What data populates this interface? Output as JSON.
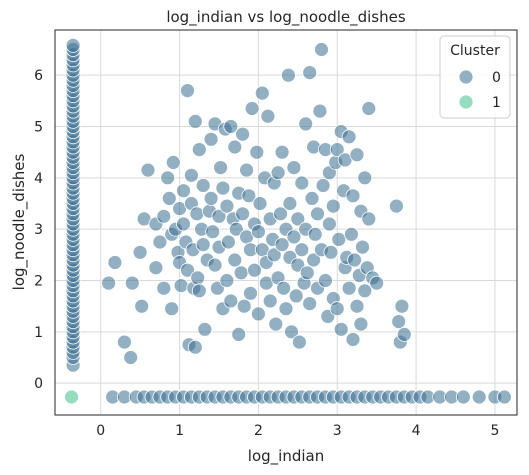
{
  "chart_data": {
    "type": "scatter",
    "title": "log_indian vs log_noodle_dishes",
    "xlabel": "log_indian",
    "ylabel": "log_noodle_dishes",
    "xlim": [
      -0.58,
      5.28
    ],
    "ylim": [
      -0.62,
      6.88
    ],
    "xticks": [
      0,
      1,
      2,
      3,
      4,
      5
    ],
    "yticks": [
      0,
      1,
      2,
      3,
      4,
      5,
      6
    ],
    "grid": true,
    "legend": {
      "title": "Cluster",
      "position": "top-right",
      "entries": [
        "0",
        "1"
      ]
    },
    "colors": {
      "0": "#3b6f92",
      "1": "#3fbf8a"
    },
    "series": [
      {
        "name": "0",
        "x_strip_value": -0.35,
        "strip_y": [
          0.35,
          0.5,
          0.6,
          0.7,
          0.8,
          0.9,
          1.0,
          1.1,
          1.2,
          1.3,
          1.4,
          1.5,
          1.6,
          1.7,
          1.8,
          1.9,
          2.0,
          2.1,
          2.2,
          2.3,
          2.4,
          2.5,
          2.6,
          2.7,
          2.8,
          2.9,
          3.0,
          3.1,
          3.2,
          3.3,
          3.4,
          3.5,
          3.6,
          3.7,
          3.8,
          3.9,
          4.0,
          4.1,
          4.2,
          4.3,
          4.4,
          4.5,
          4.6,
          4.7,
          4.8,
          4.9,
          5.0,
          5.1,
          5.2,
          5.3,
          5.4,
          5.5,
          5.6,
          5.7,
          5.8,
          5.9,
          6.0,
          6.1,
          6.2,
          6.3,
          6.4,
          6.5,
          6.58
        ],
        "y_strip_value": -0.27,
        "strip_x": [
          0.15,
          0.3,
          0.45,
          0.55,
          0.65,
          0.75,
          0.85,
          0.95,
          1.05,
          1.15,
          1.25,
          1.35,
          1.45,
          1.55,
          1.65,
          1.75,
          1.85,
          1.95,
          2.05,
          2.15,
          2.25,
          2.35,
          2.45,
          2.55,
          2.65,
          2.75,
          2.85,
          2.95,
          3.05,
          3.15,
          3.25,
          3.35,
          3.45,
          3.55,
          3.65,
          3.75,
          3.85,
          3.95,
          4.05,
          4.15,
          4.3,
          4.45,
          4.6,
          4.8,
          5.0,
          5.12
        ],
        "points": [
          [
            0.1,
            1.95
          ],
          [
            0.18,
            2.35
          ],
          [
            0.3,
            0.8
          ],
          [
            0.38,
            0.5
          ],
          [
            0.4,
            1.95
          ],
          [
            0.5,
            2.55
          ],
          [
            0.52,
            1.5
          ],
          [
            0.55,
            3.2
          ],
          [
            0.6,
            4.15
          ],
          [
            0.7,
            3.1
          ],
          [
            0.7,
            2.25
          ],
          [
            0.75,
            2.75
          ],
          [
            0.8,
            3.25
          ],
          [
            0.8,
            1.85
          ],
          [
            0.85,
            4.0
          ],
          [
            0.87,
            3.6
          ],
          [
            0.9,
            1.45
          ],
          [
            0.9,
            2.9
          ],
          [
            0.92,
            4.3
          ],
          [
            0.95,
            3.0
          ],
          [
            0.98,
            2.55
          ],
          [
            1.0,
            3.4
          ],
          [
            1.0,
            2.35
          ],
          [
            1.02,
            1.9
          ],
          [
            1.05,
            3.75
          ],
          [
            1.05,
            3.1
          ],
          [
            1.08,
            2.75
          ],
          [
            1.1,
            5.7
          ],
          [
            1.1,
            2.2
          ],
          [
            1.12,
            0.75
          ],
          [
            1.15,
            3.5
          ],
          [
            1.15,
            4.05
          ],
          [
            1.17,
            2.6
          ],
          [
            1.18,
            1.85
          ],
          [
            1.2,
            0.7
          ],
          [
            1.2,
            5.1
          ],
          [
            1.22,
            3.3
          ],
          [
            1.23,
            2.05
          ],
          [
            1.25,
            1.8
          ],
          [
            1.25,
            4.55
          ],
          [
            1.28,
            3.0
          ],
          [
            1.3,
            2.7
          ],
          [
            1.3,
            3.85
          ],
          [
            1.32,
            1.05
          ],
          [
            1.35,
            2.4
          ],
          [
            1.38,
            3.35
          ],
          [
            1.4,
            4.75
          ],
          [
            1.4,
            3.6
          ],
          [
            1.42,
            2.95
          ],
          [
            1.45,
            5.05
          ],
          [
            1.45,
            2.3
          ],
          [
            1.48,
            1.85
          ],
          [
            1.5,
            3.25
          ],
          [
            1.5,
            2.65
          ],
          [
            1.52,
            4.2
          ],
          [
            1.55,
            3.8
          ],
          [
            1.55,
            1.45
          ],
          [
            1.58,
            4.95
          ],
          [
            1.6,
            3.45
          ],
          [
            1.6,
            2.0
          ],
          [
            1.62,
            2.75
          ],
          [
            1.65,
            5.0
          ],
          [
            1.65,
            1.6
          ],
          [
            1.68,
            3.2
          ],
          [
            1.7,
            2.4
          ],
          [
            1.7,
            4.6
          ],
          [
            1.72,
            3.0
          ],
          [
            1.75,
            3.7
          ],
          [
            1.75,
            0.95
          ],
          [
            1.78,
            2.15
          ],
          [
            1.8,
            4.85
          ],
          [
            1.8,
            3.3
          ],
          [
            1.82,
            1.5
          ],
          [
            1.85,
            2.85
          ],
          [
            1.85,
            4.15
          ],
          [
            1.88,
            3.65
          ],
          [
            1.9,
            2.6
          ],
          [
            1.9,
            1.75
          ],
          [
            1.92,
            5.35
          ],
          [
            1.95,
            3.1
          ],
          [
            1.95,
            2.2
          ],
          [
            1.98,
            4.5
          ],
          [
            2.0,
            2.95
          ],
          [
            2.0,
            1.35
          ],
          [
            2.02,
            3.5
          ],
          [
            2.05,
            5.65
          ],
          [
            2.05,
            2.6
          ],
          [
            2.08,
            4.0
          ],
          [
            2.1,
            1.95
          ],
          [
            2.1,
            2.35
          ],
          [
            2.12,
            5.2
          ],
          [
            2.15,
            3.2
          ],
          [
            2.15,
            1.6
          ],
          [
            2.18,
            2.8
          ],
          [
            2.2,
            3.9
          ],
          [
            2.2,
            2.5
          ],
          [
            2.22,
            1.15
          ],
          [
            2.25,
            4.1
          ],
          [
            2.25,
            2.05
          ],
          [
            2.28,
            3.3
          ],
          [
            2.3,
            4.5
          ],
          [
            2.3,
            2.7
          ],
          [
            2.32,
            1.85
          ],
          [
            2.35,
            3.0
          ],
          [
            2.35,
            1.45
          ],
          [
            2.38,
            6.0
          ],
          [
            2.4,
            2.45
          ],
          [
            2.4,
            3.5
          ],
          [
            2.42,
            1.0
          ],
          [
            2.45,
            2.85
          ],
          [
            2.45,
            4.2
          ],
          [
            2.48,
            1.7
          ],
          [
            2.5,
            3.2
          ],
          [
            2.5,
            2.3
          ],
          [
            2.52,
            0.8
          ],
          [
            2.55,
            2.6
          ],
          [
            2.55,
            3.9
          ],
          [
            2.58,
            1.95
          ],
          [
            2.6,
            5.05
          ],
          [
            2.6,
            3.0
          ],
          [
            2.62,
            2.15
          ],
          [
            2.65,
            6.05
          ],
          [
            2.65,
            1.55
          ],
          [
            2.68,
            3.6
          ],
          [
            2.7,
            2.4
          ],
          [
            2.7,
            4.6
          ],
          [
            2.72,
            2.9
          ],
          [
            2.75,
            3.3
          ],
          [
            2.75,
            1.85
          ],
          [
            2.78,
            5.3
          ],
          [
            2.8,
            6.5
          ],
          [
            2.8,
            2.6
          ],
          [
            2.82,
            3.85
          ],
          [
            2.85,
            4.55
          ],
          [
            2.85,
            2.0
          ],
          [
            2.88,
            1.3
          ],
          [
            2.9,
            3.1
          ],
          [
            2.9,
            4.1
          ],
          [
            2.92,
            2.55
          ],
          [
            2.95,
            1.65
          ],
          [
            2.95,
            3.45
          ],
          [
            2.98,
            4.3
          ],
          [
            3.0,
            1.45
          ],
          [
            3.0,
            4.55
          ],
          [
            3.02,
            2.8
          ],
          [
            3.05,
            4.9
          ],
          [
            3.05,
            1.05
          ],
          [
            3.08,
            3.75
          ],
          [
            3.1,
            2.25
          ],
          [
            3.1,
            4.35
          ],
          [
            3.12,
            2.45
          ],
          [
            3.15,
            4.8
          ],
          [
            3.15,
            1.85
          ],
          [
            3.18,
            2.9
          ],
          [
            3.2,
            3.65
          ],
          [
            3.2,
            0.85
          ],
          [
            3.22,
            2.4
          ],
          [
            3.25,
            4.45
          ],
          [
            3.25,
            1.5
          ],
          [
            3.28,
            2.1
          ],
          [
            3.3,
            3.35
          ],
          [
            3.3,
            1.15
          ],
          [
            3.32,
            2.65
          ],
          [
            3.35,
            4.0
          ],
          [
            3.35,
            1.8
          ],
          [
            3.38,
            2.25
          ],
          [
            3.4,
            5.35
          ],
          [
            3.4,
            3.2
          ],
          [
            3.45,
            2.05
          ],
          [
            3.5,
            1.95
          ],
          [
            3.75,
            3.45
          ],
          [
            3.78,
            1.2
          ],
          [
            3.8,
            0.8
          ],
          [
            3.82,
            1.5
          ],
          [
            3.85,
            0.95
          ]
        ]
      },
      {
        "name": "1",
        "points": [
          [
            -0.37,
            -0.27
          ]
        ]
      }
    ]
  }
}
